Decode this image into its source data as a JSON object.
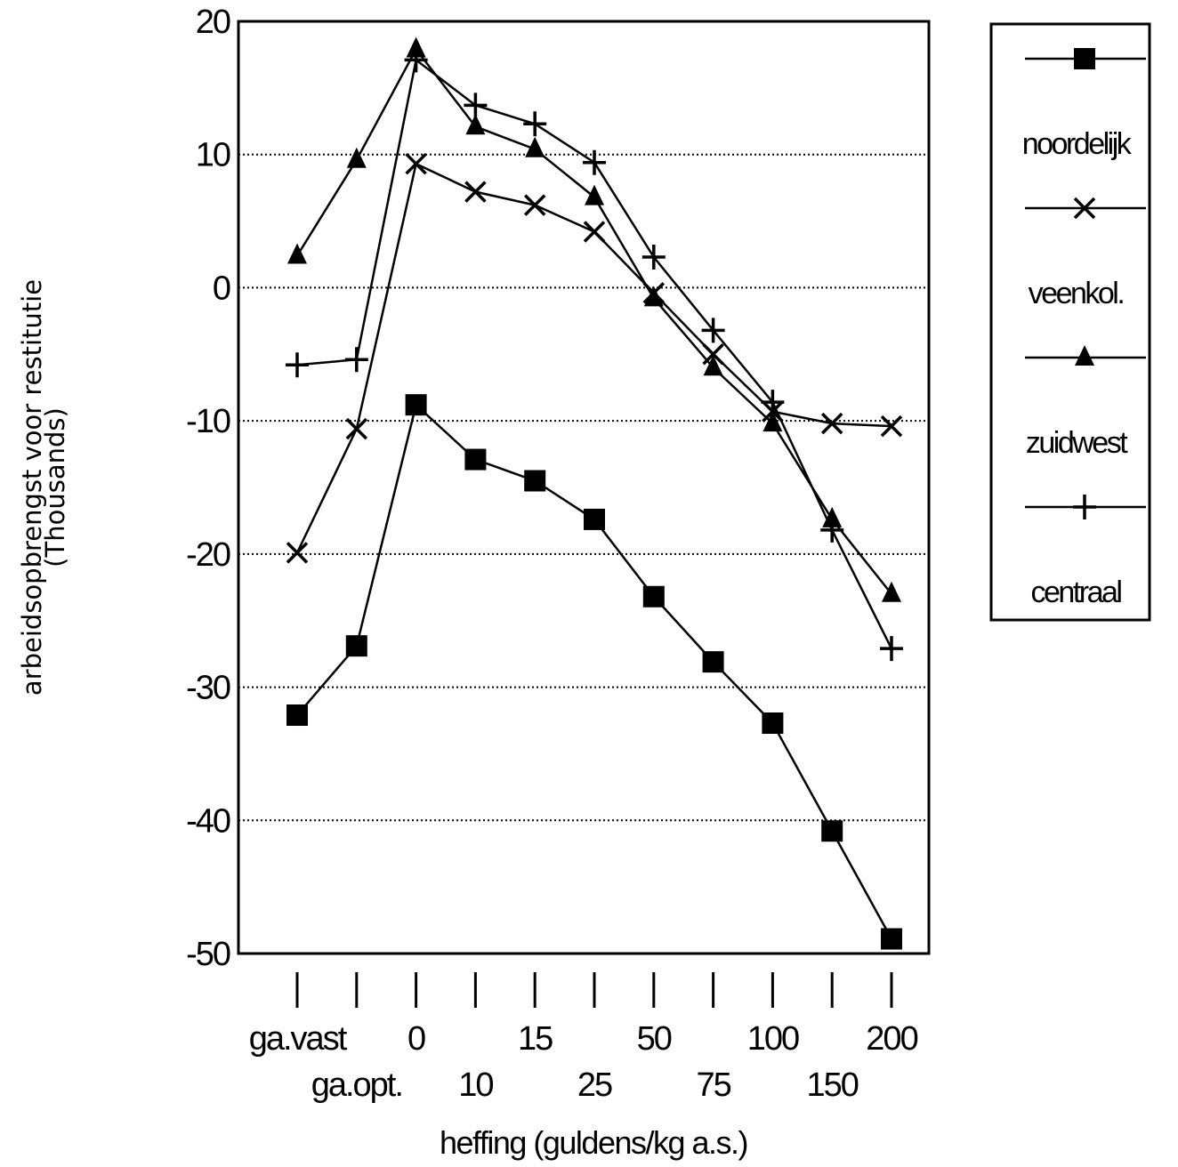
{
  "chart_data": {
    "type": "line",
    "ylabel": "arbeidsopbrengst voor restitutie",
    "ylabel_unit": "(Thousands)",
    "xlabel": "heffing (guldens/kg a.s.)",
    "categories": [
      "ga.vast",
      "ga.opt.",
      "0",
      "10",
      "15",
      "25",
      "50",
      "75",
      "100",
      "150",
      "200"
    ],
    "ylim": [
      -50,
      20
    ],
    "yticks": [
      20,
      10,
      0,
      -10,
      -20,
      -30,
      -40,
      -50
    ],
    "ytick_labels": [
      "20",
      "10",
      "0",
      "-10",
      "-20",
      "-30",
      "-40",
      "-50"
    ],
    "grid": true,
    "legend_position": "right",
    "series": [
      {
        "name": "noordelijk",
        "marker": "square",
        "values": [
          -32.1,
          -26.9,
          -8.8,
          -12.9,
          -14.5,
          -17.4,
          -23.2,
          -28.1,
          -32.7,
          -40.8,
          -48.9
        ]
      },
      {
        "name": "veenkol.",
        "marker": "x",
        "values": [
          -19.9,
          -10.6,
          9.3,
          7.2,
          6.2,
          4.2,
          -0.4,
          -5.0,
          -9.3,
          -10.2,
          -10.4
        ]
      },
      {
        "name": "zuidwest",
        "marker": "triangle",
        "values": [
          2.4,
          9.6,
          17.9,
          12.1,
          10.4,
          6.8,
          -0.8,
          -6.0,
          -10.2,
          -17.4,
          -23.0
        ]
      },
      {
        "name": "centraal",
        "marker": "plus",
        "values": [
          -5.8,
          -5.4,
          17.1,
          13.7,
          12.3,
          9.4,
          2.3,
          -3.2,
          -8.6,
          -18.2,
          -27.1
        ]
      }
    ]
  }
}
